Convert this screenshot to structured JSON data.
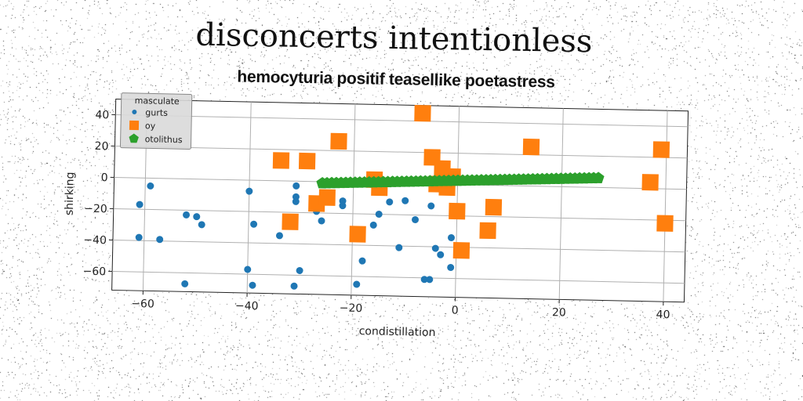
{
  "title": "disconcerts intentionless",
  "chart_data": {
    "type": "scatter",
    "title": "hemocyturia positif teasellike poetastress",
    "xlabel": "condistillation",
    "ylabel": "shirking",
    "xlim": [
      -66,
      44
    ],
    "ylim": [
      -72,
      50
    ],
    "xticks": [
      -60,
      -40,
      -20,
      0,
      20,
      40
    ],
    "yticks": [
      -60,
      -40,
      -20,
      0,
      20,
      40
    ],
    "xtick_labels": [
      "−60",
      "−40",
      "−20",
      "0",
      "20",
      "40"
    ],
    "ytick_labels": [
      "−60",
      "−40",
      "−20",
      "0",
      "20",
      "40"
    ],
    "grid": true,
    "legend": {
      "title": "masculate",
      "placement": "top-left"
    },
    "series": [
      {
        "name": "gurts",
        "marker": "circle",
        "color": "#1f77b4",
        "points": [
          [
            -59,
            -5
          ],
          [
            -61,
            -17
          ],
          [
            -61,
            -38
          ],
          [
            -57,
            -39
          ],
          [
            -52,
            -23
          ],
          [
            -50,
            -24
          ],
          [
            -49,
            -29
          ],
          [
            -52,
            -67
          ],
          [
            -40,
            -7
          ],
          [
            -39,
            -28
          ],
          [
            -40,
            -57
          ],
          [
            -39,
            -67
          ],
          [
            -34,
            -35
          ],
          [
            -31,
            -3
          ],
          [
            -31,
            -10
          ],
          [
            -31,
            -13
          ],
          [
            -31,
            -67
          ],
          [
            -30,
            -57
          ],
          [
            -27,
            -19
          ],
          [
            -26,
            -25
          ],
          [
            -22,
            -12
          ],
          [
            -22,
            -15
          ],
          [
            -19,
            -65
          ],
          [
            -18,
            -50
          ],
          [
            -16,
            -27
          ],
          [
            -15,
            -20
          ],
          [
            -13,
            -12
          ],
          [
            -10,
            -11
          ],
          [
            -11,
            -41
          ],
          [
            -8,
            -23
          ],
          [
            -6,
            -61
          ],
          [
            -5,
            -61
          ],
          [
            -5,
            -14
          ],
          [
            -4,
            -41
          ],
          [
            -3,
            -45
          ],
          [
            -1,
            -34
          ],
          [
            -1,
            -53
          ]
        ]
      },
      {
        "name": "oy",
        "marker": "square",
        "color": "#ff7f0e",
        "points": [
          [
            -34,
            13
          ],
          [
            -29,
            13
          ],
          [
            -32,
            -26
          ],
          [
            -27,
            -14
          ],
          [
            -25,
            -10
          ],
          [
            -23,
            26
          ],
          [
            -19,
            -33
          ],
          [
            -16,
            2
          ],
          [
            -15,
            -3
          ],
          [
            -7,
            45
          ],
          [
            -5,
            17
          ],
          [
            -4,
            0
          ],
          [
            -3,
            10
          ],
          [
            -2,
            -2
          ],
          [
            -1,
            5
          ],
          [
            0,
            -17
          ],
          [
            1,
            -42
          ],
          [
            6,
            -29
          ],
          [
            7,
            -14
          ],
          [
            14,
            25
          ],
          [
            37,
            4
          ],
          [
            39,
            25
          ],
          [
            40,
            -22
          ]
        ]
      },
      {
        "name": "otolithus",
        "marker": "pentagon",
        "color": "#2ca02c",
        "line": {
          "x_start": -26,
          "x_end": 27,
          "y_start": -1,
          "y_end": 6,
          "count": 60
        }
      }
    ]
  }
}
